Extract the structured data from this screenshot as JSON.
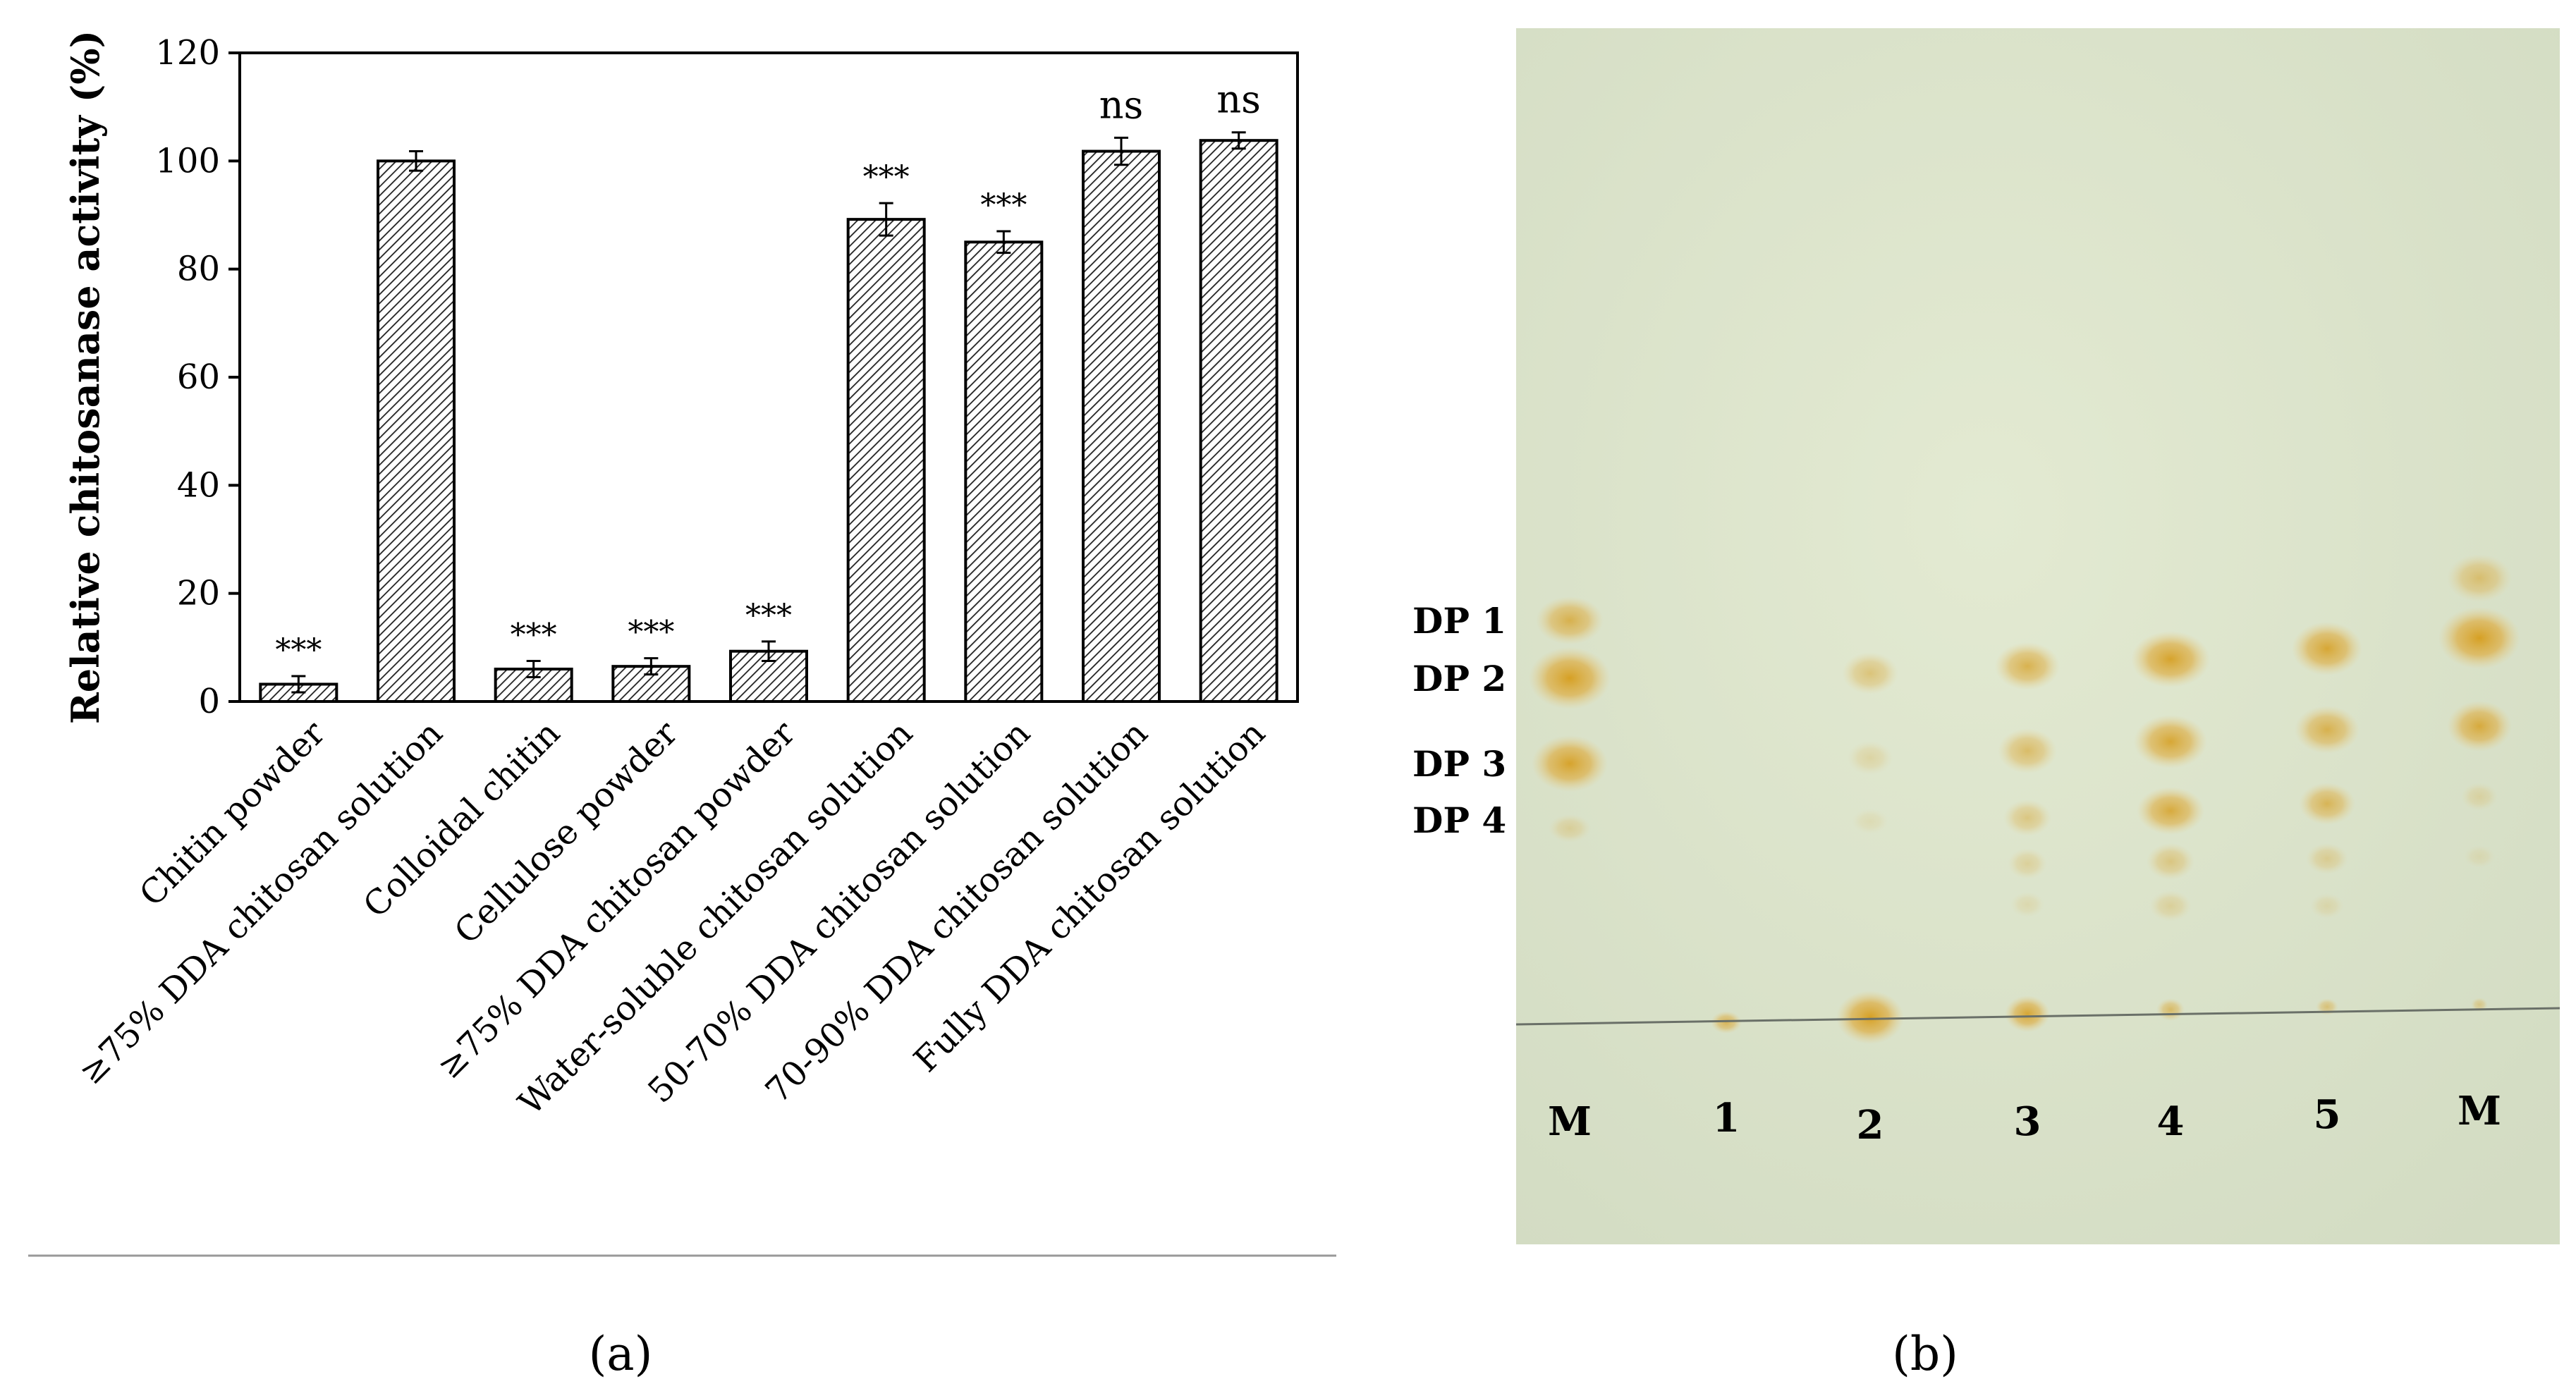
{
  "panel_labels": {
    "a": "(a)",
    "b": "(b)"
  },
  "chart_data": {
    "type": "bar",
    "title": "",
    "xlabel": "",
    "ylabel": "Relative chitosanase activity (%)",
    "ylim": [
      0,
      120
    ],
    "yticks": [
      0,
      20,
      40,
      60,
      80,
      100,
      120
    ],
    "grid": false,
    "bar_pattern": "diagonal-hatch",
    "categories": [
      "Chitin powder",
      "≥75% DDA  chitosan solution",
      "Colloidal chitin",
      "Cellulose powder",
      "≥75% DDA  chitosan powder",
      "Water-soluble chitosan solution",
      "50-70% DDA  chitosan solution",
      "70-90% DDA chitosan solution",
      "Fully DDA chitosan solution"
    ],
    "values": [
      3.2,
      100,
      6.0,
      6.5,
      9.3,
      89.2,
      85.0,
      101.8,
      103.8
    ],
    "errors": [
      1.5,
      1.8,
      1.5,
      1.5,
      1.8,
      3.0,
      2.0,
      2.5,
      1.5
    ],
    "annotations": [
      "***",
      "",
      "***",
      "***",
      "***",
      "***",
      "***",
      "ns",
      "ns"
    ]
  },
  "tlc": {
    "band_labels": [
      "DP 1",
      "DP 2",
      "DP 3",
      "DP 4"
    ],
    "lane_labels": [
      "M",
      "1",
      "2",
      "3",
      "4",
      "5",
      "M"
    ]
  }
}
